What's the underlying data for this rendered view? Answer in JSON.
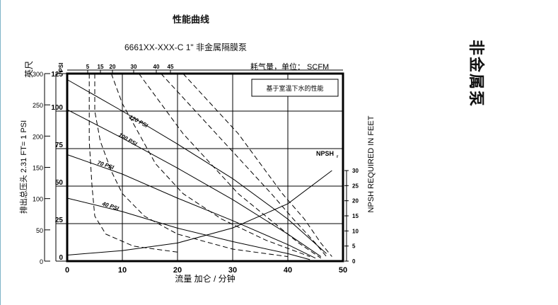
{
  "header": {
    "title": "性能曲线",
    "model": "6661XX-XXX-C 1\" 非金属隔膜泵"
  },
  "side_title": "非金属泵",
  "chart_data": {
    "type": "line",
    "title": "性能曲线",
    "xlabel": "流量 加仑 / 分钟",
    "ylabel_left": "排出总压头 2.31 FT= 1 PSI",
    "y_units_feet": "英尺",
    "y_units_psi": "PSI",
    "ylabel_right": "NPSH REQUIRED IN FEET",
    "air_axis_label": "耗气量，单位： SCFM",
    "note": "基于室温下水的性能",
    "xlim": [
      0,
      50
    ],
    "x_ticks": [
      "0",
      "10",
      "20",
      "30",
      "40",
      "50"
    ],
    "ylim_psi": [
      0,
      125
    ],
    "psi_ticks": [
      "0",
      "25",
      "50",
      "75",
      "100",
      "125"
    ],
    "ylim_feet": [
      0,
      300
    ],
    "feet_ticks": [
      "0",
      "50",
      "100",
      "150",
      "200",
      "250",
      "300"
    ],
    "npsh_ticks": [
      "0",
      "5",
      "10",
      "15",
      "20",
      "25",
      "30"
    ],
    "scfm_ticks": [
      "5",
      "15",
      "20",
      "30",
      "40",
      "45"
    ],
    "pressure_curves": [
      {
        "name": "120 PSI",
        "points": [
          [
            0,
            121
          ],
          [
            10,
            100
          ],
          [
            20,
            78
          ],
          [
            30,
            55
          ],
          [
            40,
            28
          ],
          [
            47,
            5
          ]
        ]
      },
      {
        "name": "100 PSI",
        "points": [
          [
            0,
            101
          ],
          [
            10,
            82
          ],
          [
            20,
            62
          ],
          [
            30,
            41
          ],
          [
            40,
            18
          ],
          [
            46,
            3
          ]
        ]
      },
      {
        "name": "70 PSI",
        "points": [
          [
            0,
            71
          ],
          [
            10,
            58
          ],
          [
            20,
            42
          ],
          [
            30,
            27
          ],
          [
            40,
            11
          ],
          [
            45,
            2
          ]
        ]
      },
      {
        "name": "40 PSI",
        "points": [
          [
            0,
            42
          ],
          [
            10,
            33
          ],
          [
            20,
            22
          ],
          [
            30,
            13
          ],
          [
            40,
            5
          ],
          [
            44,
            1
          ]
        ]
      }
    ],
    "air_curves": [
      {
        "name": "5",
        "points": [
          [
            4,
            125
          ],
          [
            4,
            80
          ],
          [
            4.5,
            50
          ],
          [
            5,
            30
          ],
          [
            7,
            18
          ],
          [
            12,
            10
          ],
          [
            20,
            6
          ]
        ]
      },
      {
        "name": "15",
        "points": [
          [
            5,
            125
          ],
          [
            5,
            100
          ],
          [
            6,
            80
          ],
          [
            8,
            60
          ],
          [
            10,
            45
          ],
          [
            14,
            30
          ],
          [
            20,
            18
          ],
          [
            30,
            8
          ],
          [
            40,
            3
          ]
        ]
      },
      {
        "name": "20",
        "points": [
          [
            8,
            125
          ],
          [
            10,
            105
          ],
          [
            13,
            85
          ],
          [
            16,
            65
          ],
          [
            21,
            45
          ],
          [
            28,
            28
          ],
          [
            36,
            14
          ],
          [
            44,
            3
          ]
        ]
      },
      {
        "name": "30",
        "points": [
          [
            13,
            125
          ],
          [
            17,
            105
          ],
          [
            21,
            85
          ],
          [
            26,
            65
          ],
          [
            31,
            45
          ],
          [
            37,
            27
          ],
          [
            42,
            12
          ],
          [
            46,
            2
          ]
        ]
      },
      {
        "name": "40",
        "points": [
          [
            17,
            125
          ],
          [
            22,
            105
          ],
          [
            27,
            85
          ],
          [
            32,
            65
          ],
          [
            37,
            45
          ],
          [
            41,
            28
          ],
          [
            45,
            12
          ],
          [
            47,
            3
          ]
        ]
      },
      {
        "name": "45",
        "points": [
          [
            21,
            125
          ],
          [
            26,
            105
          ],
          [
            31,
            85
          ],
          [
            35,
            65
          ],
          [
            39,
            45
          ],
          [
            43,
            28
          ],
          [
            46,
            12
          ],
          [
            48,
            3
          ]
        ]
      }
    ],
    "npsh_curve": {
      "name": "NPSHr",
      "label": "NPSH",
      "subscript": "r",
      "points": [
        [
          0,
          2
        ],
        [
          10,
          3.5
        ],
        [
          20,
          6
        ],
        [
          30,
          11
        ],
        [
          40,
          19
        ],
        [
          48,
          30
        ]
      ]
    },
    "grid": true
  }
}
